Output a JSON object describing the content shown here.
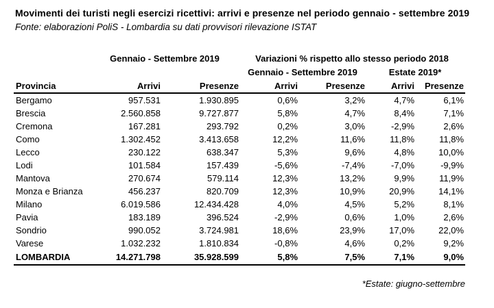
{
  "page": {
    "title": "Movimenti dei turisti negli esercizi ricettivi: arrivi e presenze nel periodo gennaio - settembre 2019",
    "source": "Fonte: elaborazioni PoliS - Lombardia su dati provvisori rilevazione ISTAT",
    "footnote": "*Estate: giugno-settembre"
  },
  "table": {
    "group_headers": {
      "period_2019": "Gennaio - Settembre 2019",
      "variation_vs_2018": "Variazioni % rispetto allo stesso periodo 2018",
      "variation_period": "Gennaio - Settembre 2019",
      "variation_summer": "Estate 2019*"
    },
    "columns": [
      "Provincia",
      "Arrivi",
      "Presenze",
      "Arrivi",
      "Presenze",
      "Arrivi",
      "Presenze"
    ],
    "rows": [
      [
        "Bergamo",
        "957.531",
        "1.930.895",
        "0,6%",
        "3,2%",
        "4,7%",
        "6,1%"
      ],
      [
        "Brescia",
        "2.560.858",
        "9.727.877",
        "5,8%",
        "4,7%",
        "8,4%",
        "7,1%"
      ],
      [
        "Cremona",
        "167.281",
        "293.792",
        "0,2%",
        "3,0%",
        "-2,9%",
        "2,6%"
      ],
      [
        "Como",
        "1.302.452",
        "3.413.658",
        "12,2%",
        "11,6%",
        "11,8%",
        "11,8%"
      ],
      [
        "Lecco",
        "230.122",
        "638.347",
        "5,3%",
        "9,6%",
        "4,8%",
        "10,0%"
      ],
      [
        "Lodi",
        "101.584",
        "157.439",
        "-5,6%",
        "-7,4%",
        "-7,0%",
        "-9,9%"
      ],
      [
        "Mantova",
        "270.674",
        "579.114",
        "12,3%",
        "13,2%",
        "9,9%",
        "11,9%"
      ],
      [
        "Monza e Brianza",
        "456.237",
        "820.709",
        "12,3%",
        "10,9%",
        "20,9%",
        "14,1%"
      ],
      [
        "Milano",
        "6.019.586",
        "12.434.428",
        "4,0%",
        "4,5%",
        "5,2%",
        "8,1%"
      ],
      [
        "Pavia",
        "183.189",
        "396.524",
        "-2,9%",
        "0,6%",
        "1,0%",
        "2,6%"
      ],
      [
        "Sondrio",
        "990.052",
        "3.724.981",
        "18,6%",
        "23,9%",
        "17,0%",
        "22,0%"
      ],
      [
        "Varese",
        "1.032.232",
        "1.810.834",
        "-0,8%",
        "4,6%",
        "0,2%",
        "9,2%"
      ]
    ],
    "total_row": [
      "LOMBARDIA",
      "14.271.798",
      "35.928.599",
      "5,8%",
      "7,5%",
      "7,1%",
      "9,0%"
    ]
  }
}
